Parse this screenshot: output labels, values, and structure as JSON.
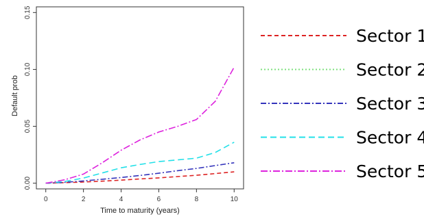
{
  "chart_data": {
    "type": "line",
    "title": "",
    "xlabel": "Time to maturity (years)",
    "ylabel": "Default prob",
    "xlim": [
      -0.5,
      10.5
    ],
    "ylim": [
      -0.005,
      0.155
    ],
    "x_ticks": [
      0,
      2,
      4,
      6,
      8,
      10
    ],
    "y_ticks": [
      0.0,
      0.05,
      0.1,
      0.15
    ],
    "x_tick_labels": [
      "0",
      "2",
      "4",
      "6",
      "8",
      "10"
    ],
    "y_tick_labels": [
      "0.00",
      "0.05",
      "0.10",
      "0.15"
    ],
    "legend_position": "right",
    "grid": false,
    "x": [
      0,
      1,
      2,
      3,
      4,
      5,
      6,
      7,
      8,
      9,
      10
    ],
    "series": [
      {
        "name": "Sector 1",
        "color": "#dd2222",
        "dash": "6,4",
        "values": [
          0.0,
          0.0005,
          0.001,
          0.0018,
          0.0027,
          0.0037,
          0.0047,
          0.0058,
          0.007,
          0.0085,
          0.01
        ]
      },
      {
        "name": "Sector 2",
        "color": "#7ee07e",
        "dash": "2,3",
        "values": [
          null,
          null,
          null,
          null,
          null,
          null,
          null,
          null,
          null,
          null,
          null
        ]
      },
      {
        "name": "Sector 3",
        "color": "#3333bb",
        "dash": "8,3,2,3",
        "values": [
          0.0,
          0.0008,
          0.002,
          0.0035,
          0.005,
          0.0068,
          0.0088,
          0.011,
          0.013,
          0.0155,
          0.018
        ]
      },
      {
        "name": "Sector 4",
        "color": "#22e0e8",
        "dash": "9,5",
        "values": [
          0.0,
          0.0015,
          0.0045,
          0.009,
          0.0135,
          0.0165,
          0.019,
          0.0205,
          0.022,
          0.027,
          0.036
        ]
      },
      {
        "name": "Sector 5",
        "color": "#dd22dd",
        "dash": "10,3,2,3",
        "values": [
          0.0,
          0.003,
          0.008,
          0.018,
          0.029,
          0.038,
          0.045,
          0.05,
          0.056,
          0.072,
          0.102
        ]
      }
    ]
  }
}
